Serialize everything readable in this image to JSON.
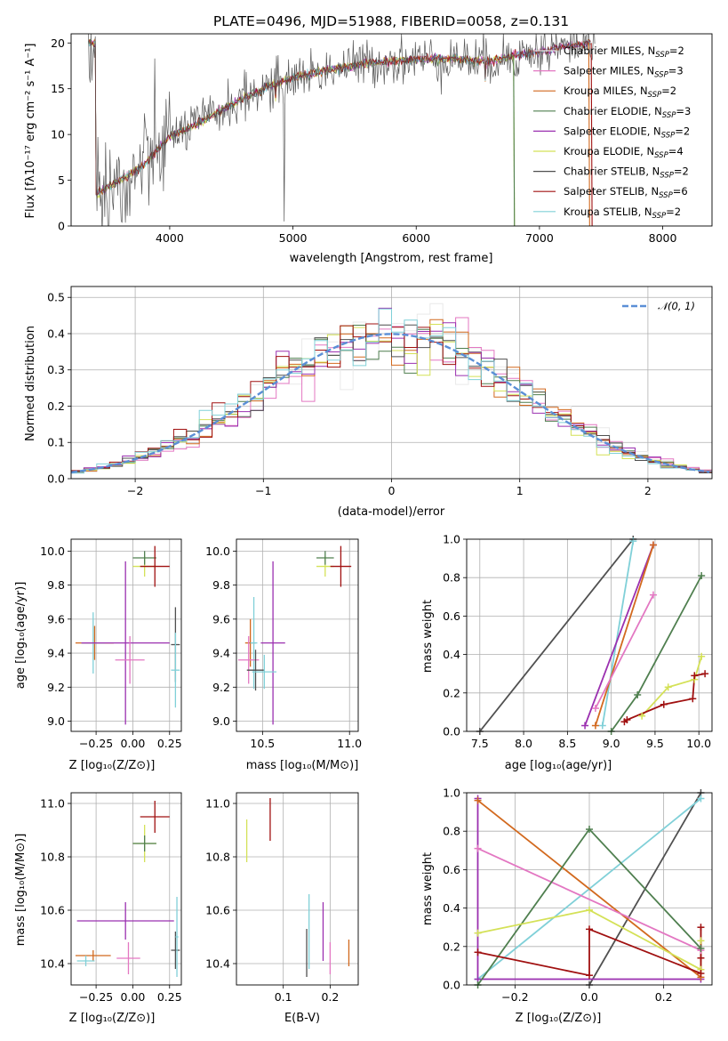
{
  "colors": {
    "c0": "#e9e9e9",
    "c1": "#e377c2",
    "c2": "#d2691e",
    "c3": "#4f7f4f",
    "c4": "#9b30b0",
    "c5": "#d4e157",
    "c6": "#505050",
    "c7": "#a01010",
    "c8": "#80d0d8",
    "norm": "#5b8fd6",
    "grid": "#b0b0b0"
  },
  "chart_data": [
    {
      "type": "line",
      "title": "PLATE=0496, MJD=51988, FIBERID=0058, z=0.131",
      "xlabel": "wavelength [Angstrom, rest frame]",
      "ylabel": "Flux [fλ10⁻¹⁷ erg cm⁻² s⁻¹ A⁻¹]",
      "xlim": [
        3200,
        8400
      ],
      "ylim": [
        0,
        21
      ],
      "xticks": [
        4000,
        5000,
        6000,
        7000,
        8000
      ],
      "yticks": [
        0,
        5,
        10,
        15,
        20
      ],
      "legend": "top-right",
      "spectrum_trend": {
        "x": [
          3400,
          3600,
          3800,
          4000,
          4200,
          4400,
          4600,
          4800,
          5000,
          5200,
          5400,
          5600,
          5800,
          6000,
          6200,
          6400,
          6600,
          6800,
          7000,
          7200,
          7400
        ],
        "y": [
          3.5,
          5.0,
          6.8,
          9.8,
          11.0,
          12.5,
          14.0,
          15.2,
          16.2,
          16.8,
          17.3,
          17.8,
          18.0,
          18.2,
          18.3,
          18.2,
          18.0,
          18.6,
          19.0,
          19.6,
          20.0
        ]
      },
      "series": [
        {
          "name": "Chabrier MILES, N",
          "sub": "SSP",
          "rest": "=2",
          "color_key": "c0"
        },
        {
          "name": "Salpeter MILES, N",
          "sub": "SSP",
          "rest": "=3",
          "color_key": "c1"
        },
        {
          "name": "Kroupa MILES, N",
          "sub": "SSP",
          "rest": "=2",
          "color_key": "c2"
        },
        {
          "name": "Chabrier ELODIE, N",
          "sub": "SSP",
          "rest": "=3",
          "color_key": "c3"
        },
        {
          "name": "Salpeter ELODIE, N",
          "sub": "SSP",
          "rest": "=2",
          "color_key": "c4"
        },
        {
          "name": "Kroupa ELODIE, N",
          "sub": "SSP",
          "rest": "=4",
          "color_key": "c5"
        },
        {
          "name": "Chabrier STELIB, N",
          "sub": "SSP",
          "rest": "=2",
          "color_key": "c6"
        },
        {
          "name": "Salpeter STELIB, N",
          "sub": "SSP",
          "rest": "=6",
          "color_key": "c7"
        },
        {
          "name": "Kroupa STELIB, N",
          "sub": "SSP",
          "rest": "=2",
          "color_key": "c8"
        }
      ]
    },
    {
      "type": "line",
      "xlabel": "(data-model)/error",
      "ylabel": "Normed distribution",
      "xlim": [
        -2.5,
        2.5
      ],
      "ylim": [
        0,
        0.53
      ],
      "xticks": [
        -2,
        -1,
        0,
        1,
        2
      ],
      "xtick_labels": [
        "−2",
        "−1",
        "0",
        "1",
        "2"
      ],
      "yticks": [
        0.0,
        0.1,
        0.2,
        0.3,
        0.4,
        0.5
      ],
      "ytick_labels": [
        "0.0",
        "0.1",
        "0.2",
        "0.3",
        "0.4",
        "0.5"
      ],
      "grid": true,
      "legend": "top-right",
      "normal_curve": {
        "label": "𝒩(0, 1)",
        "mean": 0,
        "sigma": 1
      },
      "histogram_bin_width": 0.1
    },
    {
      "type": "scatter",
      "xlabel": "Z [log₁₀(Z/Z⊙)]",
      "ylabel": "age  [log₁₀(age/yr)]",
      "xlim": [
        -0.42,
        0.33
      ],
      "ylim": [
        8.94,
        10.07
      ],
      "xticks": [
        -0.25,
        0.0,
        0.25
      ],
      "xtick_labels": [
        "−0.25",
        "0.00",
        "0.25"
      ],
      "yticks": [
        9.0,
        9.2,
        9.4,
        9.6,
        9.8,
        10.0
      ],
      "ytick_labels": [
        "9.0",
        "9.2",
        "9.4",
        "9.6",
        "9.8",
        "10.0"
      ],
      "grid": true,
      "points": [
        {
          "color_key": "c5",
          "x": 0.08,
          "y": 9.91,
          "xerr": 0.08,
          "yerr": 0.06
        },
        {
          "color_key": "c3",
          "x": 0.08,
          "y": 9.96,
          "xerr": 0.08,
          "yerr": 0.04
        },
        {
          "color_key": "c7",
          "x": 0.15,
          "y": 9.91,
          "xerr": 0.1,
          "yerr": 0.12
        },
        {
          "color_key": "c2",
          "x": -0.26,
          "y": 9.46,
          "xerr": 0.13,
          "yerr": 0.1
        },
        {
          "color_key": "c8",
          "x": -0.27,
          "y": 9.46,
          "xerr": 0.08,
          "yerr": 0.18
        },
        {
          "color_key": "c4",
          "x": -0.05,
          "y": 9.46,
          "xerr": 0.3,
          "yerr": 0.48
        },
        {
          "color_key": "c1",
          "x": -0.02,
          "y": 9.36,
          "xerr": 0.1,
          "yerr": 0.14
        },
        {
          "color_key": "c6",
          "x": 0.29,
          "y": 9.45,
          "xerr": 0.03,
          "yerr": 0.22
        },
        {
          "color_key": "c8",
          "x": 0.29,
          "y": 9.3,
          "xerr": 0.03,
          "yerr": 0.22
        }
      ]
    },
    {
      "type": "scatter",
      "xlabel": "mass [log₁₀(M/M⊙)]",
      "xlim": [
        10.35,
        11.05
      ],
      "ylim": [
        8.94,
        10.07
      ],
      "xticks": [
        10.5,
        11.0
      ],
      "xtick_labels": [
        "10.5",
        "11.0"
      ],
      "yticks": [
        9.0,
        9.2,
        9.4,
        9.6,
        9.8,
        10.0
      ],
      "ytick_labels": [
        "9.0",
        "9.2",
        "9.4",
        "9.6",
        "9.8",
        "10.0"
      ],
      "grid": true,
      "points": [
        {
          "color_key": "c5",
          "x": 10.86,
          "y": 9.91,
          "xerr": 0.05,
          "yerr": 0.06
        },
        {
          "color_key": "c3",
          "x": 10.86,
          "y": 9.96,
          "xerr": 0.05,
          "yerr": 0.04
        },
        {
          "color_key": "c7",
          "x": 10.95,
          "y": 9.91,
          "xerr": 0.06,
          "yerr": 0.12
        },
        {
          "color_key": "c2",
          "x": 10.43,
          "y": 9.46,
          "xerr": 0.03,
          "yerr": 0.14
        },
        {
          "color_key": "c8",
          "x": 10.45,
          "y": 9.46,
          "xerr": 0.02,
          "yerr": 0.27
        },
        {
          "color_key": "c4",
          "x": 10.56,
          "y": 9.46,
          "xerr": 0.07,
          "yerr": 0.48
        },
        {
          "color_key": "c1",
          "x": 10.42,
          "y": 9.36,
          "xerr": 0.06,
          "yerr": 0.14
        },
        {
          "color_key": "c6",
          "x": 10.46,
          "y": 9.3,
          "xerr": 0.05,
          "yerr": 0.12
        },
        {
          "color_key": "c8",
          "x": 10.51,
          "y": 9.29,
          "xerr": 0.07,
          "yerr": 0.1
        }
      ]
    },
    {
      "type": "line",
      "xlabel": "age  [log₁₀(age/yr)]",
      "ylabel": "mass weight",
      "xlim": [
        7.35,
        10.15
      ],
      "ylim": [
        0,
        1
      ],
      "xticks": [
        7.5,
        8.0,
        8.5,
        9.0,
        9.5,
        10.0
      ],
      "xtick_labels": [
        "7.5",
        "8.0",
        "8.5",
        "9.0",
        "9.5",
        "10.0"
      ],
      "yticks": [
        0,
        0.2,
        0.4,
        0.6,
        0.8,
        1.0
      ],
      "ytick_labels": [
        "0.0",
        "0.2",
        "0.4",
        "0.6",
        "0.8",
        "1.0"
      ],
      "grid": true,
      "series": [
        {
          "color_key": "c6",
          "x": [
            7.5,
            9.25
          ],
          "y": [
            0.0,
            1.0
          ]
        },
        {
          "color_key": "c8",
          "x": [
            8.9,
            9.25
          ],
          "y": [
            0.03,
            0.99
          ]
        },
        {
          "color_key": "c4",
          "x": [
            8.7,
            9.48
          ],
          "y": [
            0.03,
            0.97
          ]
        },
        {
          "color_key": "c2",
          "x": [
            8.82,
            9.48
          ],
          "y": [
            0.03,
            0.97
          ]
        },
        {
          "color_key": "c1",
          "x": [
            8.82,
            9.48
          ],
          "y": [
            0.12,
            0.71
          ]
        },
        {
          "color_key": "c3",
          "x": [
            9.0,
            9.3,
            10.03
          ],
          "y": [
            0.0,
            0.19,
            0.81
          ]
        },
        {
          "color_key": "c5",
          "x": [
            9.35,
            9.65,
            9.95,
            10.03
          ],
          "y": [
            0.08,
            0.23,
            0.27,
            0.39
          ]
        },
        {
          "color_key": "c7",
          "x": [
            9.15,
            9.18,
            9.6,
            9.93,
            9.95,
            10.07
          ],
          "y": [
            0.05,
            0.06,
            0.14,
            0.17,
            0.29,
            0.3
          ]
        }
      ]
    },
    {
      "type": "scatter",
      "xlabel": "Z [log₁₀(Z/Z⊙)]",
      "ylabel": "mass [log₁₀(M/M⊙)]",
      "xlim": [
        -0.42,
        0.33
      ],
      "ylim": [
        10.32,
        11.04
      ],
      "xticks": [
        -0.25,
        0.0,
        0.25
      ],
      "xtick_labels": [
        "−0.25",
        "0.00",
        "0.25"
      ],
      "yticks": [
        10.4,
        10.6,
        10.8,
        11.0
      ],
      "ytick_labels": [
        "10.4",
        "10.6",
        "10.8",
        "11.0"
      ],
      "grid": true,
      "points": [
        {
          "color_key": "c7",
          "x": 0.15,
          "y": 10.95,
          "xerr": 0.1,
          "yerr": 0.06
        },
        {
          "color_key": "c5",
          "x": 0.08,
          "y": 10.85,
          "xerr": 0.08,
          "yerr": 0.07
        },
        {
          "color_key": "c3",
          "x": 0.08,
          "y": 10.85,
          "xerr": 0.08,
          "yerr": 0.03
        },
        {
          "color_key": "c4",
          "x": -0.05,
          "y": 10.56,
          "xerr": 0.33,
          "yerr": 0.07
        },
        {
          "color_key": "c2",
          "x": -0.27,
          "y": 10.43,
          "xerr": 0.12,
          "yerr": 0.02
        },
        {
          "color_key": "c8",
          "x": -0.32,
          "y": 10.41,
          "xerr": 0.06,
          "yerr": 0.02
        },
        {
          "color_key": "c1",
          "x": -0.03,
          "y": 10.42,
          "xerr": 0.08,
          "yerr": 0.06
        },
        {
          "color_key": "c6",
          "x": 0.29,
          "y": 10.45,
          "xerr": 0.03,
          "yerr": 0.07
        },
        {
          "color_key": "c8",
          "x": 0.3,
          "y": 10.5,
          "xerr": 0.01,
          "yerr": 0.15
        }
      ]
    },
    {
      "type": "scatter",
      "xlabel": "E(B-V)",
      "xlim": [
        0.0,
        0.26
      ],
      "ylim": [
        10.32,
        11.04
      ],
      "xticks": [
        0.1,
        0.2
      ],
      "xtick_labels": [
        "0.1",
        "0.2"
      ],
      "yticks": [
        10.4,
        10.6,
        10.8,
        11.0
      ],
      "ytick_labels": [
        "10.4",
        "10.6",
        "10.8",
        "11.0"
      ],
      "grid": true,
      "points": [
        {
          "color_key": "c5",
          "x": 0.022,
          "y": 10.86,
          "xerr": 0,
          "yerr": 0.08
        },
        {
          "color_key": "c7",
          "x": 0.072,
          "y": 10.94,
          "xerr": 0,
          "yerr": 0.08
        },
        {
          "color_key": "c6",
          "x": 0.15,
          "y": 10.44,
          "xerr": 0,
          "yerr": 0.09
        },
        {
          "color_key": "c8",
          "x": 0.155,
          "y": 10.52,
          "xerr": 0,
          "yerr": 0.14
        },
        {
          "color_key": "c4",
          "x": 0.185,
          "y": 10.52,
          "xerr": 0,
          "yerr": 0.11
        },
        {
          "color_key": "c1",
          "x": 0.2,
          "y": 10.42,
          "xerr": 0,
          "yerr": 0.06
        },
        {
          "color_key": "c2",
          "x": 0.24,
          "y": 10.44,
          "xerr": 0,
          "yerr": 0.05
        }
      ]
    },
    {
      "type": "line",
      "xlabel": "Z [log₁₀(Z/Z⊙)]",
      "ylabel": "mass weight",
      "xlim": [
        -0.33,
        0.33
      ],
      "ylim": [
        0,
        1
      ],
      "xticks": [
        -0.2,
        0.0,
        0.2
      ],
      "xtick_labels": [
        "−0.2",
        "0.0",
        "0.2"
      ],
      "yticks": [
        0,
        0.2,
        0.4,
        0.6,
        0.8,
        1.0
      ],
      "ytick_labels": [
        "0.0",
        "0.2",
        "0.4",
        "0.6",
        "0.8",
        "1.0"
      ],
      "grid": true,
      "series": [
        {
          "color_key": "c6",
          "x": [
            0.0,
            0.3
          ],
          "y": [
            0.0,
            1.0
          ]
        },
        {
          "color_key": "c8",
          "x": [
            -0.3,
            0.3
          ],
          "y": [
            0.03,
            0.97
          ]
        },
        {
          "color_key": "c4",
          "x": [
            -0.3,
            -0.3,
            0.3
          ],
          "y": [
            0.97,
            0.03,
            0.03
          ]
        },
        {
          "color_key": "c2",
          "x": [
            -0.3,
            0.3
          ],
          "y": [
            0.96,
            0.04
          ]
        },
        {
          "color_key": "c1",
          "x": [
            -0.3,
            0.3
          ],
          "y": [
            0.71,
            0.18
          ]
        },
        {
          "color_key": "c3",
          "x": [
            -0.3,
            0.0,
            0.3
          ],
          "y": [
            0.0,
            0.81,
            0.19
          ]
        },
        {
          "color_key": "c5",
          "x": [
            -0.3,
            0.0,
            0.3,
            0.3
          ],
          "y": [
            0.27,
            0.39,
            0.08,
            0.23
          ]
        },
        {
          "color_key": "c7",
          "x": [
            -0.3,
            0.0,
            0.0,
            0.3,
            0.3,
            0.3
          ],
          "y": [
            0.17,
            0.05,
            0.29,
            0.06,
            0.14,
            0.3
          ]
        }
      ]
    }
  ]
}
